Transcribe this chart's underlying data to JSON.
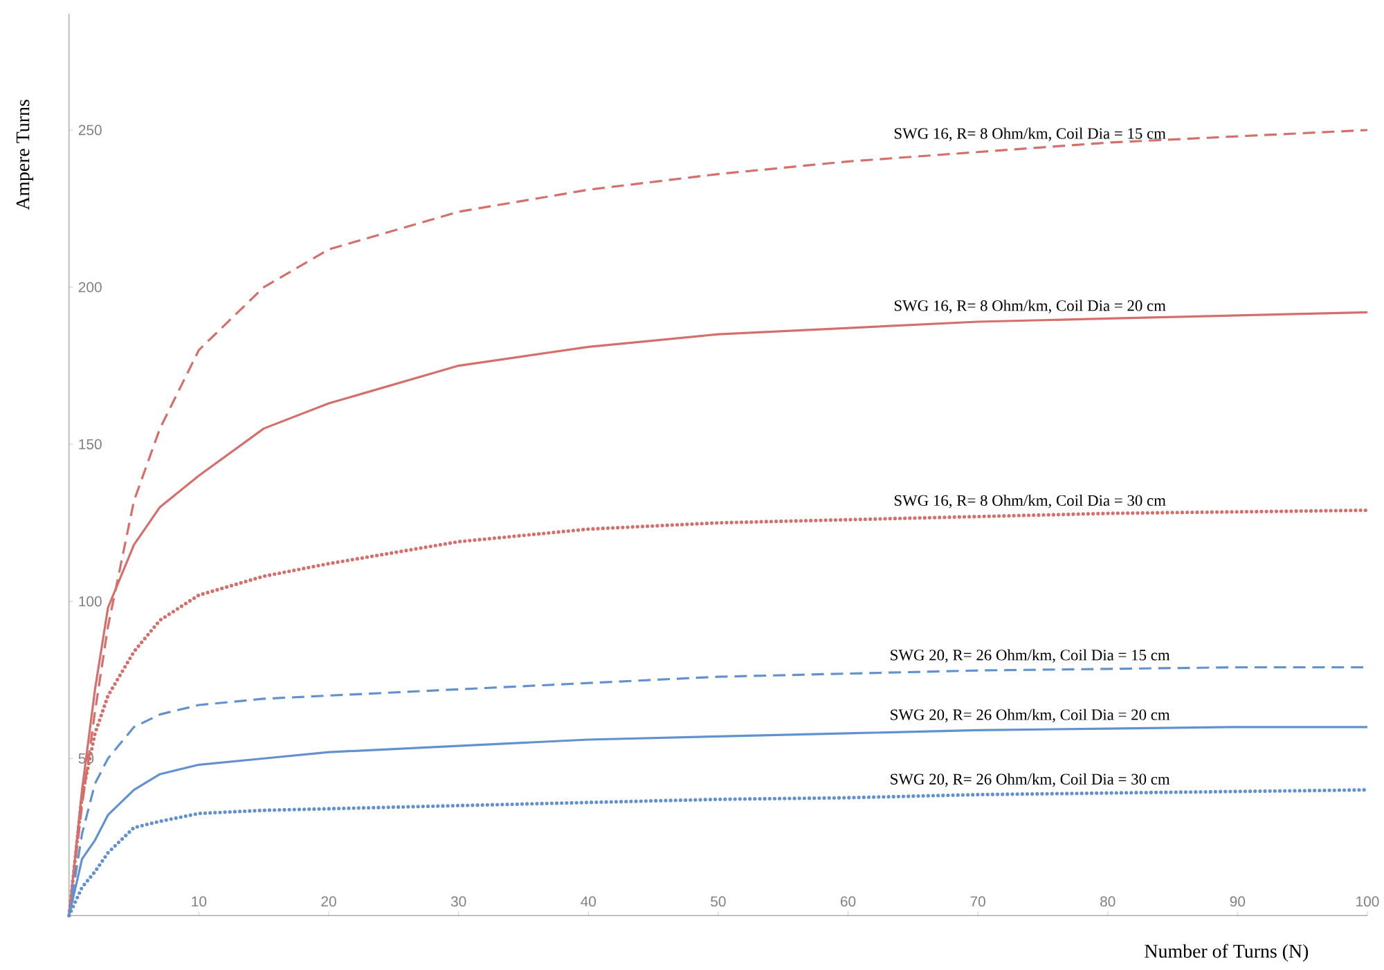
{
  "chart_data": {
    "type": "line",
    "xlabel": "Number of Turns (N)",
    "ylabel": "Ampere Turns",
    "x": [
      0,
      1,
      2,
      3,
      5,
      7,
      10,
      15,
      20,
      30,
      40,
      50,
      60,
      70,
      80,
      90,
      100
    ],
    "xlim": [
      0,
      100
    ],
    "xticks": [
      10,
      20,
      30,
      40,
      50,
      60,
      70,
      80,
      90,
      100
    ],
    "ylim": [
      0,
      287
    ],
    "yticks": [
      50,
      100,
      150,
      200,
      250
    ],
    "series": [
      {
        "name": "SWG 16, R= 8 Ohm/km, Coil Dia = 15 cm",
        "color": "#d46f6c",
        "line_style": "dashed",
        "values": [
          0,
          35,
          65,
          92,
          132,
          155,
          180,
          200,
          212,
          224,
          231,
          236,
          240,
          243,
          246,
          248,
          250
        ]
      },
      {
        "name": "SWG 16, R= 8 Ohm/km, Coil Dia = 20 cm",
        "color": "#d46f6c",
        "line_style": "solid",
        "values": [
          0,
          40,
          72,
          98,
          118,
          130,
          140,
          155,
          163,
          175,
          181,
          185,
          187,
          189,
          190,
          191,
          192
        ]
      },
      {
        "name": "SWG 16, R= 8 Ohm/km, Coil Dia = 30 cm",
        "color": "#d46f6c",
        "line_style": "dotted",
        "values": [
          0,
          38,
          58,
          70,
          84,
          94,
          102,
          108,
          112,
          119,
          123,
          125,
          126,
          127,
          128,
          128.5,
          129
        ]
      },
      {
        "name": "SWG 20, R= 26 Ohm/km, Coil Dia = 15 cm",
        "color": "#6192cf",
        "line_style": "dashed",
        "values": [
          0,
          26,
          42,
          50,
          60,
          64,
          67,
          69,
          70,
          72,
          74,
          76,
          77,
          78,
          78.5,
          79,
          79
        ]
      },
      {
        "name": "SWG 20, R= 26 Ohm/km, Coil Dia = 20 cm",
        "color": "#6192cf",
        "line_style": "solid",
        "values": [
          0,
          18,
          24,
          32,
          40,
          45,
          48,
          50,
          52,
          54,
          56,
          57,
          58,
          59,
          59.5,
          60,
          60
        ]
      },
      {
        "name": "SWG 20, R= 26 Ohm/km, Coil Dia = 30 cm",
        "color": "#6192cf",
        "line_style": "dotted",
        "values": [
          0,
          9,
          14,
          20,
          28,
          30,
          32.5,
          33.5,
          34,
          35,
          36,
          37,
          37.5,
          38.5,
          39,
          39.5,
          40
        ]
      }
    ]
  }
}
